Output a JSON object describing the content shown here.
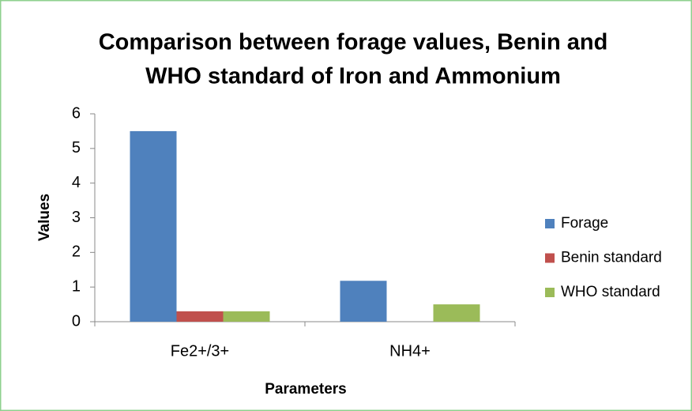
{
  "chart_data": {
    "type": "bar",
    "title": [
      "Comparison between forage values, Benin and",
      "WHO standard of Iron and Ammonium"
    ],
    "x_label": "Parameters",
    "y_label": "Values",
    "categories": [
      "Fe2+/3+",
      "NH4+"
    ],
    "series": [
      {
        "name": "Forage",
        "color": "#4f81bd",
        "values": [
          5.5,
          1.18
        ]
      },
      {
        "name": "Benin standard",
        "color": "#c0504d",
        "values": [
          0.3,
          null
        ]
      },
      {
        "name": "WHO standard",
        "color": "#9bbb59",
        "values": [
          0.3,
          0.5
        ]
      }
    ],
    "ylim": [
      0,
      6
    ],
    "yticks": [
      0,
      1,
      2,
      3,
      4,
      5,
      6
    ],
    "grid": false,
    "legend": "right"
  }
}
